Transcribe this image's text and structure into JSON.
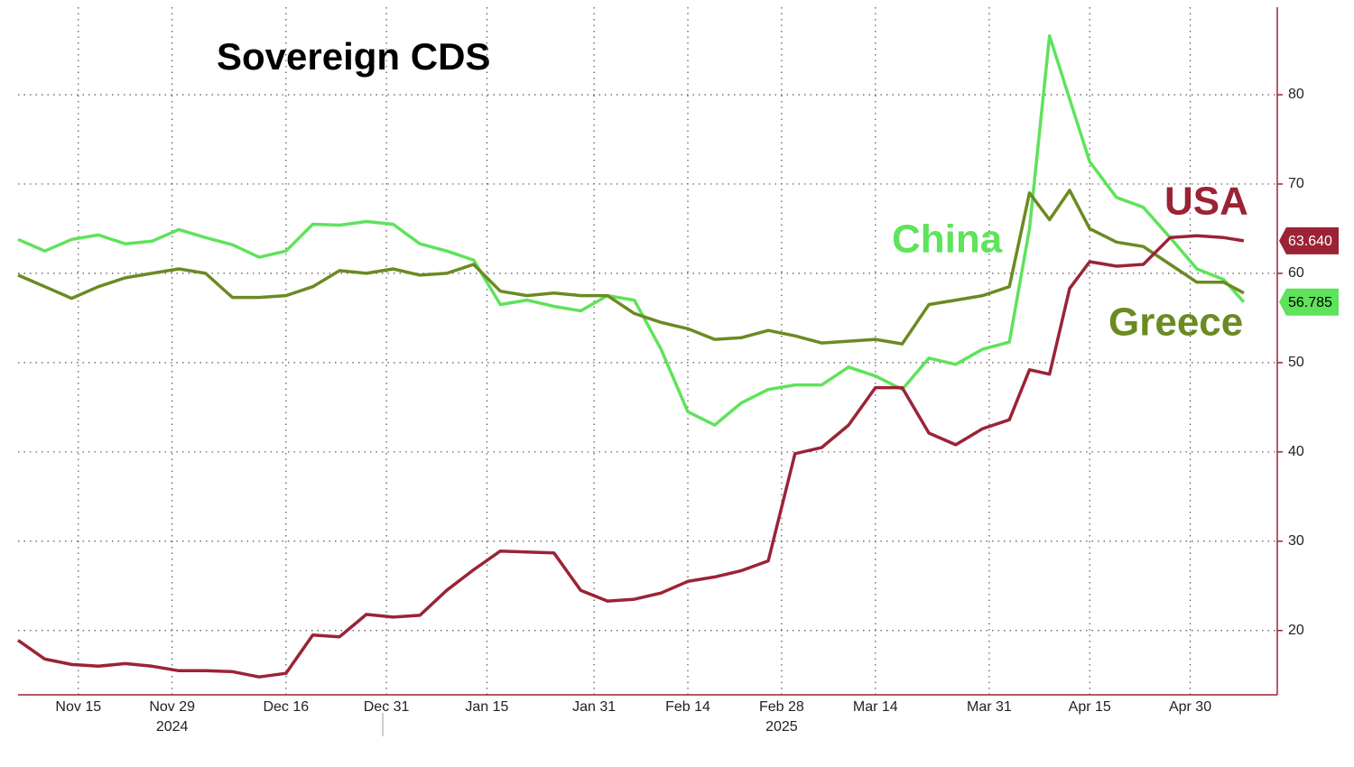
{
  "chart_data": {
    "type": "line",
    "title": "Sovereign CDS",
    "x": [
      "2024-11-06",
      "2024-11-10",
      "2024-11-14",
      "2024-11-18",
      "2024-11-22",
      "2024-11-26",
      "2024-11-30",
      "2024-12-04",
      "2024-12-08",
      "2024-12-12",
      "2024-12-16",
      "2024-12-20",
      "2024-12-24",
      "2024-12-28",
      "2025-01-01",
      "2025-01-05",
      "2025-01-09",
      "2025-01-13",
      "2025-01-17",
      "2025-01-21",
      "2025-01-25",
      "2025-01-29",
      "2025-02-02",
      "2025-02-06",
      "2025-02-10",
      "2025-02-14",
      "2025-02-18",
      "2025-02-22",
      "2025-02-26",
      "2025-03-02",
      "2025-03-06",
      "2025-03-10",
      "2025-03-14",
      "2025-03-18",
      "2025-03-22",
      "2025-03-26",
      "2025-03-30",
      "2025-04-03",
      "2025-04-06",
      "2025-04-09",
      "2025-04-12",
      "2025-04-15",
      "2025-04-19",
      "2025-04-23",
      "2025-04-27",
      "2025-05-01",
      "2025-05-05",
      "2025-05-08"
    ],
    "series": [
      {
        "name": "China",
        "color": "#5ee35a",
        "values": [
          63.8,
          62.5,
          63.8,
          64.3,
          63.3,
          63.6,
          64.9,
          64.0,
          63.2,
          61.8,
          62.5,
          65.5,
          65.4,
          65.8,
          65.5,
          63.3,
          62.5,
          61.5,
          56.5,
          57.0,
          56.3,
          55.8,
          57.5,
          57.0,
          51.5,
          44.5,
          43.0,
          45.5,
          47.0,
          47.5,
          47.5,
          49.5,
          48.5,
          47.0,
          50.5,
          49.8,
          51.5,
          52.3,
          65.0,
          86.6,
          79.5,
          72.5,
          68.5,
          67.4,
          64.0,
          60.5,
          59.3,
          56.785
        ]
      },
      {
        "name": "Greece",
        "color": "#6b8a22",
        "values": [
          59.8,
          58.5,
          57.2,
          58.5,
          59.5,
          60.0,
          60.5,
          60.0,
          57.3,
          57.3,
          57.5,
          58.5,
          60.3,
          60.0,
          60.5,
          59.8,
          60.0,
          61.0,
          58.0,
          57.5,
          57.8,
          57.5,
          57.5,
          55.5,
          54.5,
          53.8,
          52.6,
          52.8,
          53.6,
          53.0,
          52.2,
          52.4,
          52.6,
          52.1,
          56.5,
          57.0,
          57.5,
          58.5,
          69.0,
          66.0,
          69.3,
          65.0,
          63.5,
          63.0,
          61.0,
          59.0,
          59.0,
          57.8
        ]
      },
      {
        "name": "USA",
        "color": "#9b2335",
        "values": [
          18.9,
          16.8,
          16.2,
          16.0,
          16.3,
          16.0,
          15.5,
          15.5,
          15.4,
          14.8,
          15.2,
          19.5,
          19.3,
          21.8,
          21.5,
          21.7,
          24.5,
          26.8,
          28.9,
          28.8,
          28.7,
          24.5,
          23.3,
          23.5,
          24.2,
          25.5,
          26.0,
          26.7,
          27.8,
          39.8,
          40.5,
          43.0,
          47.2,
          47.2,
          42.1,
          40.8,
          42.6,
          43.6,
          49.2,
          48.7,
          58.3,
          61.3,
          60.8,
          61.0,
          64.0,
          64.2,
          64.0,
          63.64
        ],
        "value_labels": [
          null,
          null,
          null,
          null,
          null,
          null,
          null,
          null,
          null,
          null,
          null,
          null,
          null,
          null,
          null,
          null,
          null,
          null,
          null,
          null,
          null,
          null,
          null,
          null,
          null,
          null,
          null,
          null,
          null,
          null,
          null,
          null,
          null,
          null,
          null,
          null,
          null,
          null,
          null,
          null,
          null,
          null,
          null,
          null,
          null,
          null,
          null,
          "63.640"
        ]
      }
    ],
    "xlim": [
      "2024-11-06",
      "2025-05-13"
    ],
    "xticks": [
      {
        "value": "2024-11-15",
        "label": "Nov 15"
      },
      {
        "value": "2024-11-29",
        "label": "Nov 29"
      },
      {
        "value": "2024-12-16",
        "label": "Dec 16"
      },
      {
        "value": "2024-12-31",
        "label": "Dec 31"
      },
      {
        "value": "2025-01-15",
        "label": "Jan 15"
      },
      {
        "value": "2025-01-31",
        "label": "Jan 31"
      },
      {
        "value": "2025-02-14",
        "label": "Feb 14"
      },
      {
        "value": "2025-02-28",
        "label": "Feb 28"
      },
      {
        "value": "2025-03-14",
        "label": "Mar 14"
      },
      {
        "value": "2025-03-31",
        "label": "Mar 31"
      },
      {
        "value": "2025-04-15",
        "label": "Apr 15"
      },
      {
        "value": "2025-04-30",
        "label": "Apr 30"
      }
    ],
    "x_year_labels": [
      {
        "value": "2024-11-29",
        "label": "2024"
      },
      {
        "value": "2025-02-28",
        "label": "2025"
      }
    ],
    "ylim": [
      12.8,
      89.8
    ],
    "yticks": [
      20,
      30,
      40,
      50,
      60,
      70,
      80
    ],
    "grid": true
  }
}
